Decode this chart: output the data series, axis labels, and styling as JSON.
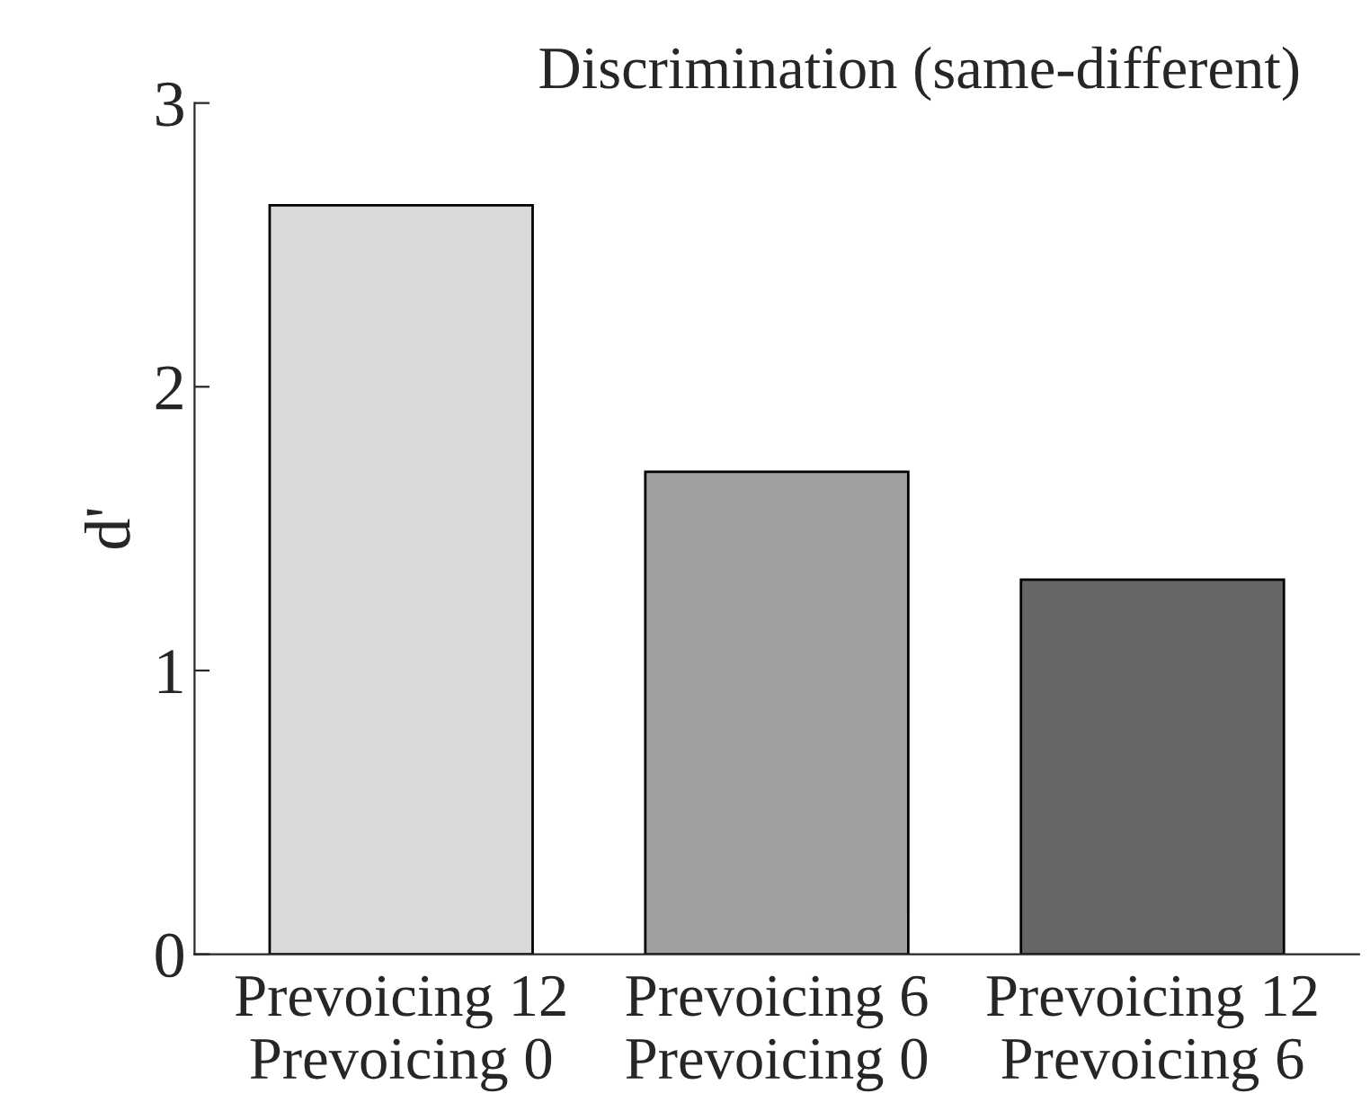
{
  "chart_data": {
    "type": "bar",
    "title": "Discrimination (same-different)",
    "ylabel": "d'",
    "categories": [
      "Prevoicing 12\nPrevoicing 0",
      "Prevoicing 6\nPrevoicing 0",
      "Prevoicing 12\nPrevoicing 6"
    ],
    "values": [
      2.64,
      1.7,
      1.32
    ],
    "colors": [
      "#d9d9d9",
      "#a0a0a0",
      "#666666"
    ],
    "ylim": [
      0,
      3
    ],
    "yticks": [
      0,
      1,
      2,
      3
    ],
    "grid": false
  }
}
